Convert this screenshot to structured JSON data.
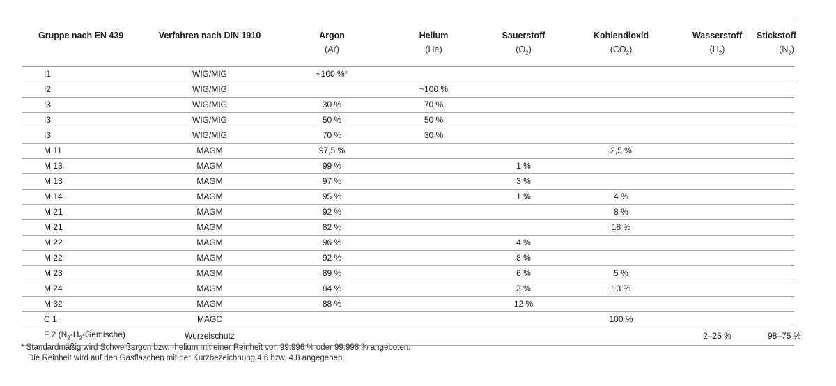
{
  "headers": [
    {
      "label": "Gruppe nach EN 439",
      "sub": "",
      "sub_main": "",
      "sub_idx": "",
      "sub_end": ""
    },
    {
      "label": "Verfahren nach DIN 1910",
      "sub": "",
      "sub_main": "",
      "sub_idx": "",
      "sub_end": ""
    },
    {
      "label": "Argon",
      "sub_main": "(Ar)",
      "sub_idx": "",
      "sub_end": ""
    },
    {
      "label": "Helium",
      "sub_main": "(He)",
      "sub_idx": "",
      "sub_end": ""
    },
    {
      "label": "Sauerstoff",
      "sub_main": "(O",
      "sub_idx": "2",
      "sub_end": ")"
    },
    {
      "label": "Kohlendioxid",
      "sub_main": "(CO",
      "sub_idx": "2",
      "sub_end": ")"
    },
    {
      "label": "Wasserstoff",
      "sub_main": "(H",
      "sub_idx": "2",
      "sub_end": ")"
    },
    {
      "label": "Stickstoff",
      "sub_main": "(N",
      "sub_idx": "2",
      "sub_end": ")"
    }
  ],
  "rows": [
    [
      "I1",
      "WIG/MIG",
      "~100 %*",
      "",
      "",
      "",
      "",
      ""
    ],
    [
      "I2",
      "WIG/MIG",
      "",
      "~100 %",
      "",
      "",
      "",
      ""
    ],
    [
      "I3",
      "WIG/MIG",
      "30 %",
      "70 %",
      "",
      "",
      "",
      ""
    ],
    [
      "I3",
      "WIG/MIG",
      "50 %",
      "50 %",
      "",
      "",
      "",
      ""
    ],
    [
      "I3",
      "WIG/MIG",
      "70 %",
      "30 %",
      "",
      "",
      "",
      ""
    ],
    [
      "M 11",
      "MAGM",
      "97,5 %",
      "",
      "",
      "2,5 %",
      "",
      ""
    ],
    [
      "M 13",
      "MAGM",
      "99 %",
      "",
      "1 %",
      "",
      "",
      ""
    ],
    [
      "M 13",
      "MAGM",
      "97 %",
      "",
      "3 %",
      "",
      "",
      ""
    ],
    [
      "M 14",
      "MAGM",
      "95 %",
      "",
      "1 %",
      "4 %",
      "",
      ""
    ],
    [
      "M 21",
      "MAGM",
      "92 %",
      "",
      "",
      "8 %",
      "",
      ""
    ],
    [
      "M 21",
      "MAGM",
      "82 %",
      "",
      "",
      "18 %",
      "",
      ""
    ],
    [
      "M 22",
      "MAGM",
      "96 %",
      "",
      "4 %",
      "",
      "",
      ""
    ],
    [
      "M 22",
      "MAGM",
      "92 %",
      "",
      "8 %",
      "",
      "",
      ""
    ],
    [
      "M 23",
      "MAGM",
      "89 %",
      "",
      "6 %",
      "5 %",
      "",
      ""
    ],
    [
      "M 24",
      "MAGM",
      "84 %",
      "",
      "3 %",
      "13 %",
      "",
      ""
    ],
    [
      "M 32",
      "MAGM",
      "88 %",
      "",
      "12 %",
      "",
      "",
      ""
    ],
    [
      "C 1",
      "MAGC",
      "",
      "",
      "",
      "100 %",
      "",
      ""
    ],
    [
      "",
      "Wurzelschutz",
      "",
      "",
      "",
      "",
      "2–25 %",
      "98–75 %"
    ]
  ],
  "last_row_group": {
    "a": "F 2 (N",
    "b": "2",
    "c": "-H",
    "d": "2",
    "e": "-Gemische)"
  },
  "footnote": {
    "line1": "* Standardmäßig wird Schweißargon bzw. -helium mit einer Reinheit von 99.996 % oder 99.998 % angeboten.",
    "line2": "Die Reinheit wird auf den Gasflaschen mit der Kurzbezeichnung 4.6 bzw. 4.8 angegeben."
  }
}
